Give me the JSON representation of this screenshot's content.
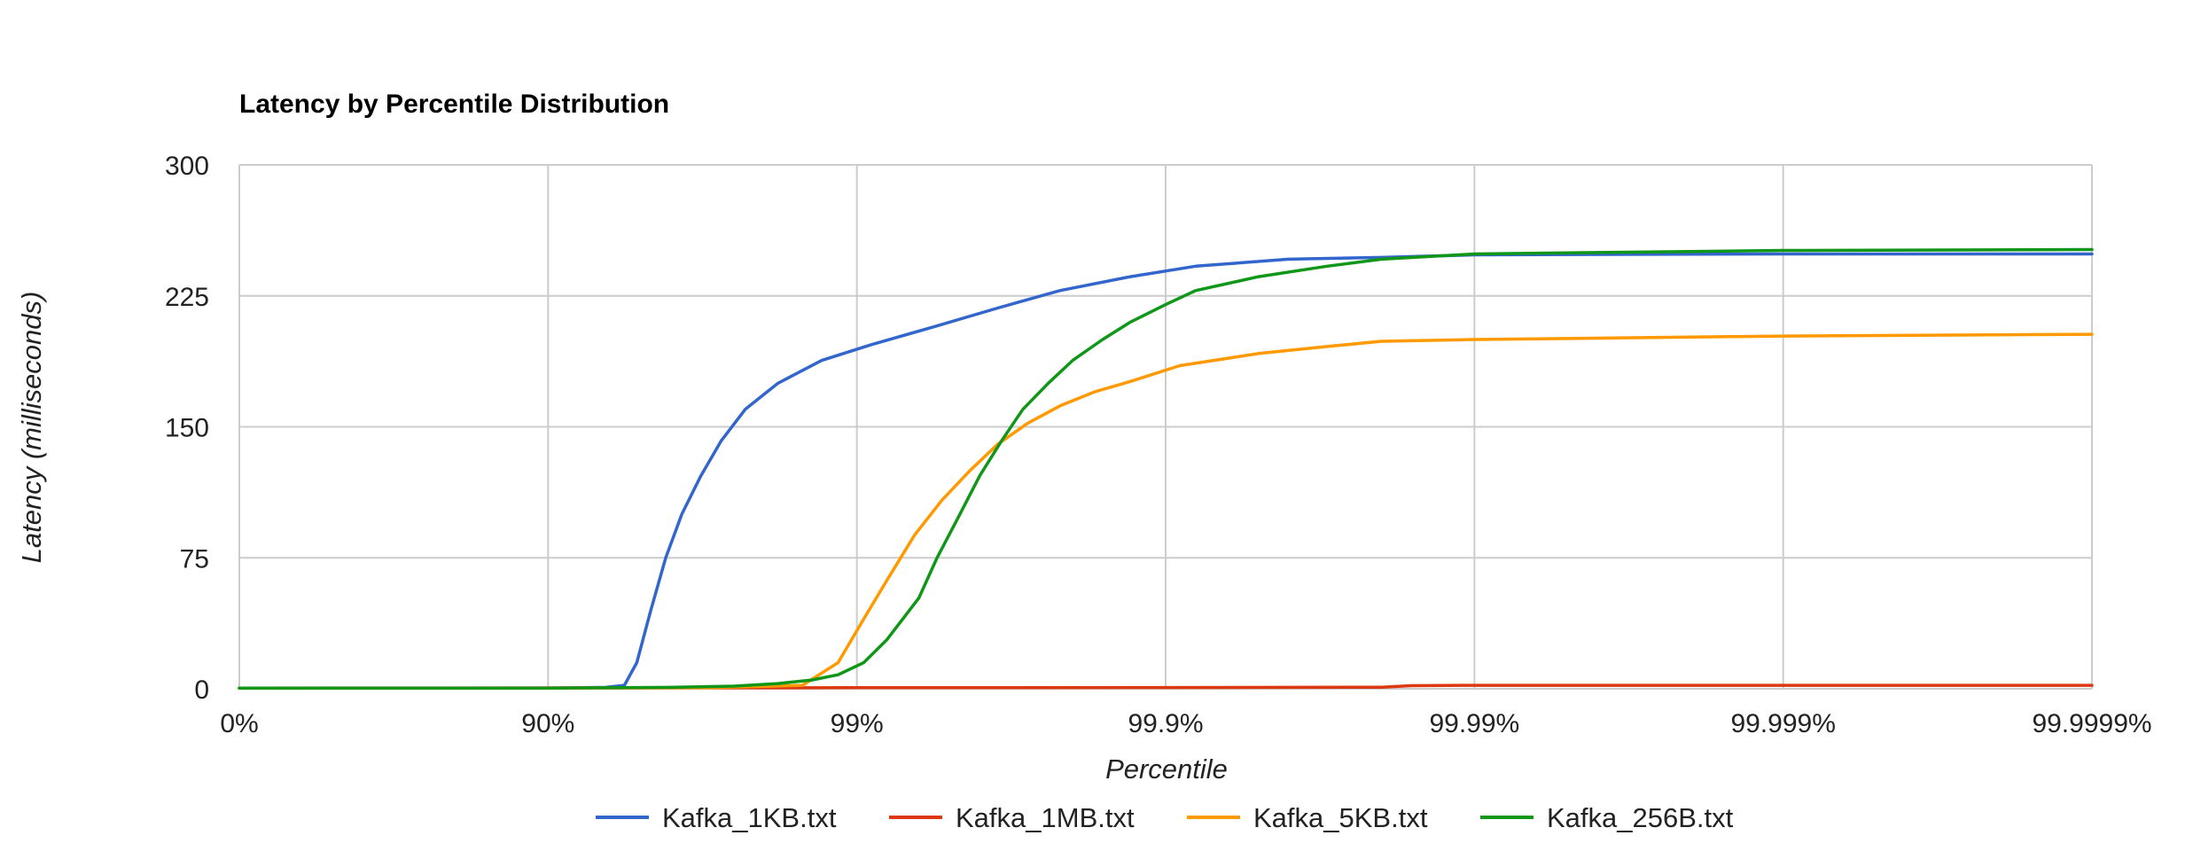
{
  "chart_data": {
    "type": "line",
    "title": "Latency by Percentile Distribution",
    "xlabel": "Percentile",
    "ylabel": "Latency (milliseconds)",
    "x_scale": "log-percentile (1/(1-p))",
    "x_ticks": [
      "0%",
      "90%",
      "99%",
      "99.9%",
      "99.99%",
      "99.999%",
      "99.9999%"
    ],
    "y_ticks": [
      "0",
      "75",
      "150",
      "225",
      "300"
    ],
    "ylim": [
      0,
      300
    ],
    "grid": true,
    "legend_position": "bottom",
    "series": [
      {
        "name": "Kafka_1KB.txt",
        "color": "#3366cc",
        "points": [
          [
            0,
            0.4
          ],
          [
            90,
            0.4
          ],
          [
            93.5,
            0.8
          ],
          [
            94.34,
            2
          ],
          [
            94.84,
            15
          ],
          [
            95.35,
            45
          ],
          [
            95.84,
            75
          ],
          [
            96.31,
            100
          ],
          [
            96.8,
            122
          ],
          [
            97.25,
            142
          ],
          [
            97.7,
            160
          ],
          [
            98.2,
            175
          ],
          [
            98.7,
            188
          ],
          [
            99.1,
            197
          ],
          [
            99.43,
            207
          ],
          [
            99.65,
            218
          ],
          [
            99.78,
            228
          ],
          [
            99.87,
            236
          ],
          [
            99.92,
            242
          ],
          [
            99.96,
            246
          ],
          [
            99.98,
            247
          ],
          [
            99.99,
            248.5
          ],
          [
            99.999,
            249
          ],
          [
            99.9999,
            249
          ]
        ]
      },
      {
        "name": "Kafka_1MB.txt",
        "color": "#dc3912",
        "points": [
          [
            0,
            0.4
          ],
          [
            90,
            0.5
          ],
          [
            99,
            0.6
          ],
          [
            99.9,
            0.7
          ],
          [
            99.98,
            0.9
          ],
          [
            99.984,
            1.8
          ],
          [
            99.99,
            2
          ],
          [
            99.999,
            2
          ],
          [
            99.9999,
            2
          ]
        ]
      },
      {
        "name": "Kafka_5KB.txt",
        "color": "#ff9900",
        "points": [
          [
            0,
            0.4
          ],
          [
            90,
            0.4
          ],
          [
            97,
            0.6
          ],
          [
            98.5,
            2
          ],
          [
            98.85,
            15
          ],
          [
            99.05,
            40
          ],
          [
            99.2,
            62
          ],
          [
            99.35,
            88
          ],
          [
            99.47,
            108
          ],
          [
            99.57,
            125
          ],
          [
            99.65,
            140
          ],
          [
            99.72,
            152
          ],
          [
            99.78,
            162
          ],
          [
            99.83,
            170
          ],
          [
            99.87,
            176
          ],
          [
            99.91,
            185
          ],
          [
            99.95,
            192
          ],
          [
            99.97,
            196
          ],
          [
            99.98,
            199
          ],
          [
            99.99,
            200
          ],
          [
            99.999,
            202
          ],
          [
            99.9999,
            203
          ]
        ]
      },
      {
        "name": "Kafka_256B.txt",
        "color": "#109618",
        "points": [
          [
            0,
            0.4
          ],
          [
            90,
            0.4
          ],
          [
            96,
            0.8
          ],
          [
            97.5,
            1.5
          ],
          [
            98.2,
            3
          ],
          [
            98.6,
            5
          ],
          [
            98.85,
            8
          ],
          [
            99.05,
            15
          ],
          [
            99.2,
            28
          ],
          [
            99.37,
            52
          ],
          [
            99.45,
            75
          ],
          [
            99.53,
            98
          ],
          [
            99.6,
            122
          ],
          [
            99.66,
            142
          ],
          [
            99.71,
            160
          ],
          [
            99.76,
            175
          ],
          [
            99.8,
            188
          ],
          [
            99.84,
            200
          ],
          [
            99.87,
            210
          ],
          [
            99.9,
            220
          ],
          [
            99.92,
            228
          ],
          [
            99.95,
            236
          ],
          [
            99.97,
            242
          ],
          [
            99.98,
            246
          ],
          [
            99.99,
            249
          ],
          [
            99.999,
            251
          ],
          [
            99.9999,
            251.5
          ]
        ]
      }
    ]
  }
}
